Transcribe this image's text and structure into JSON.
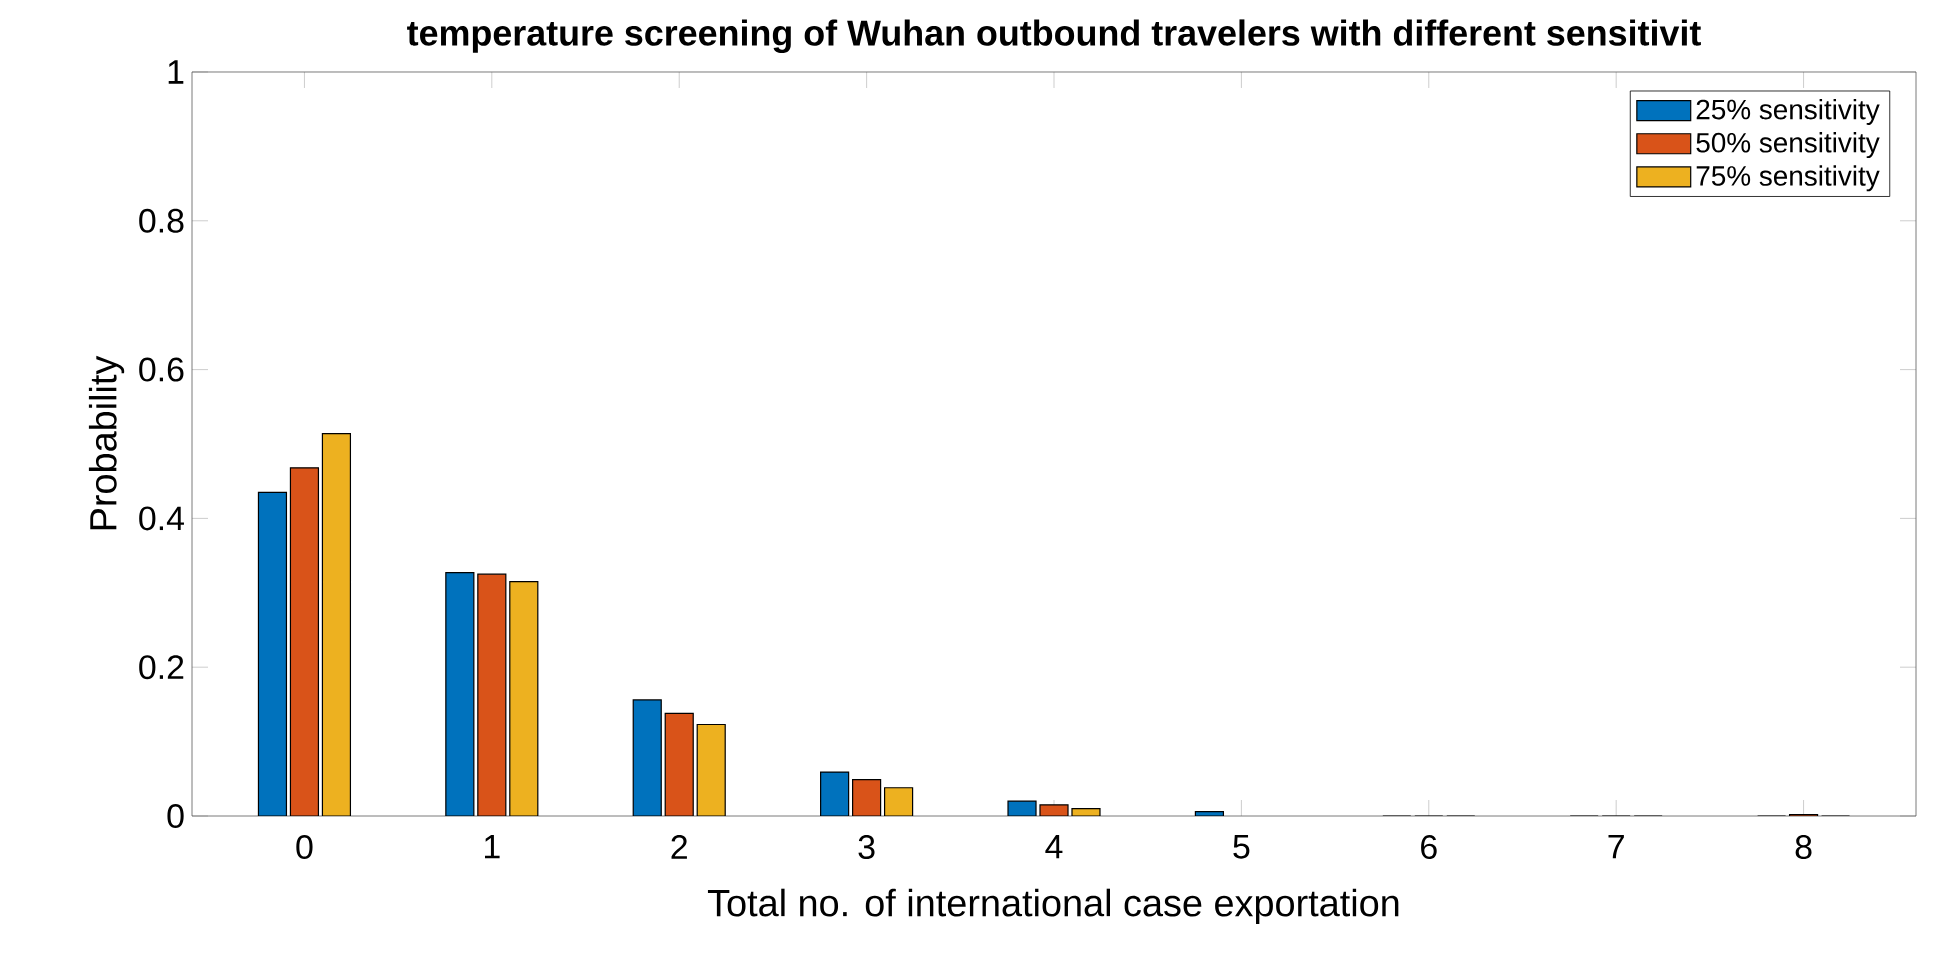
{
  "chart_data": {
    "type": "bar",
    "title": "temperature screening of Wuhan outbound travelers with different sensitivit",
    "xlabel": "Total no. of international case exportation",
    "ylabel": "Probability",
    "categories": [
      "0",
      "1",
      "2",
      "3",
      "4",
      "5",
      "6",
      "7",
      "8"
    ],
    "series": [
      {
        "name": "25% sensitivity",
        "color": "#0072bd",
        "values": [
          0.435,
          0.327,
          0.156,
          0.059,
          0.02,
          0.006,
          0,
          0,
          0
        ]
      },
      {
        "name": "50% sensitivity",
        "color": "#d95319",
        "values": [
          0.468,
          0.325,
          0.138,
          0.049,
          0.015,
          null,
          0,
          0,
          0.002
        ]
      },
      {
        "name": "75% sensitivity",
        "color": "#edb120",
        "values": [
          0.514,
          0.315,
          0.123,
          0.038,
          0.01,
          null,
          0,
          0,
          0
        ]
      }
    ],
    "ylim": [
      0,
      1
    ],
    "yticks": [
      0,
      0.2,
      0.4,
      0.6,
      0.8,
      1
    ],
    "legend": "top right"
  }
}
